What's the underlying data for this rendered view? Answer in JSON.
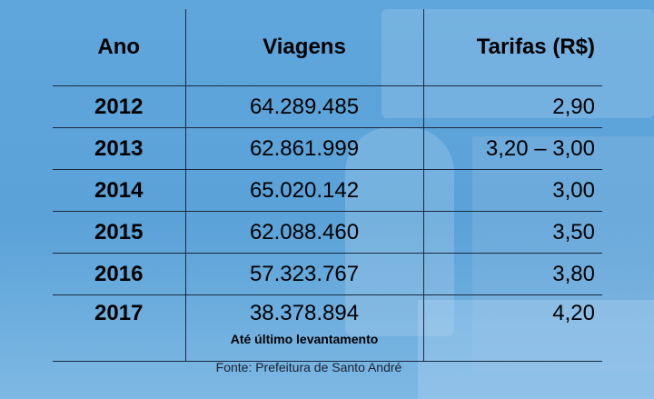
{
  "table": {
    "headers": {
      "ano": "Ano",
      "viagens": "Viagens",
      "tarifas": "Tarifas (R$)"
    },
    "rows": [
      {
        "ano": "2012",
        "viagens": "64.289.485",
        "tarifa": "2,90"
      },
      {
        "ano": "2013",
        "viagens": "62.861.999",
        "tarifa": "3,20 – 3,00"
      },
      {
        "ano": "2014",
        "viagens": "65.020.142",
        "tarifa": "3,00"
      },
      {
        "ano": "2015",
        "viagens": "62.088.460",
        "tarifa": "3,50"
      },
      {
        "ano": "2016",
        "viagens": "57.323.767",
        "tarifa": "3,80"
      },
      {
        "ano": "2017",
        "viagens": "38.378.894",
        "tarifa": "4,20",
        "note": "Até último levantamento"
      }
    ]
  },
  "source": "Fonte: Prefeitura de Santo André",
  "colors": {
    "background": "#5ea6dc",
    "text": "#000000",
    "rule": "#1a2a40"
  }
}
